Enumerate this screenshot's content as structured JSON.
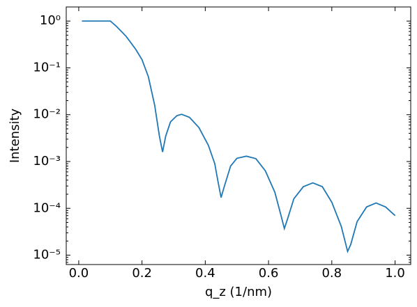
{
  "chart_data": {
    "type": "line",
    "xlabel": "q_z (1/nm)",
    "ylabel": "Intensity",
    "log_y": true,
    "x": [
      0.01,
      0.05,
      0.1,
      0.12,
      0.15,
      0.18,
      0.2,
      0.22,
      0.24,
      0.255,
      0.265,
      0.275,
      0.29,
      0.31,
      0.325,
      0.35,
      0.38,
      0.41,
      0.43,
      0.44,
      0.45,
      0.46,
      0.48,
      0.5,
      0.53,
      0.56,
      0.59,
      0.62,
      0.64,
      0.65,
      0.66,
      0.68,
      0.71,
      0.74,
      0.77,
      0.8,
      0.83,
      0.85,
      0.86,
      0.88,
      0.91,
      0.94,
      0.97,
      1.0
    ],
    "series": [
      {
        "name": "Intensity",
        "color": "#1f77b4",
        "values": [
          1.0,
          1.0,
          1.0,
          0.76,
          0.47,
          0.25,
          0.15,
          0.065,
          0.016,
          0.0035,
          0.0016,
          0.0035,
          0.007,
          0.0095,
          0.0102,
          0.0088,
          0.0053,
          0.0022,
          0.0009,
          0.00038,
          0.00017,
          0.00029,
          0.0008,
          0.00117,
          0.0013,
          0.00115,
          0.00063,
          0.00022,
          6.8e-05,
          3.7e-05,
          5.9e-05,
          0.00016,
          0.00029,
          0.00035,
          0.00029,
          0.000135,
          4.1e-05,
          1.2e-05,
          1.7e-05,
          5.2e-05,
          0.000107,
          0.00013,
          0.000107,
          7e-05
        ]
      }
    ],
    "xlim": [
      -0.0395,
      1.0495
    ],
    "ylim": [
      6.3e-06,
      2
    ],
    "xticks": [
      {
        "value": 0,
        "label": "0.0"
      },
      0.2,
      0.4,
      0.6,
      0.8,
      {
        "value": 1,
        "label": "1.0"
      }
    ],
    "yticks": [
      {
        "value": 1,
        "label": "10⁰"
      },
      {
        "value": 0.1,
        "label": "10⁻¹"
      },
      {
        "value": 0.01,
        "label": "10⁻²"
      },
      {
        "value": 0.001,
        "label": "10⁻³"
      },
      {
        "value": 0.0001,
        "label": "10⁻⁴"
      },
      {
        "value": 1e-05,
        "label": "10⁻⁵"
      }
    ],
    "grid": false
  }
}
